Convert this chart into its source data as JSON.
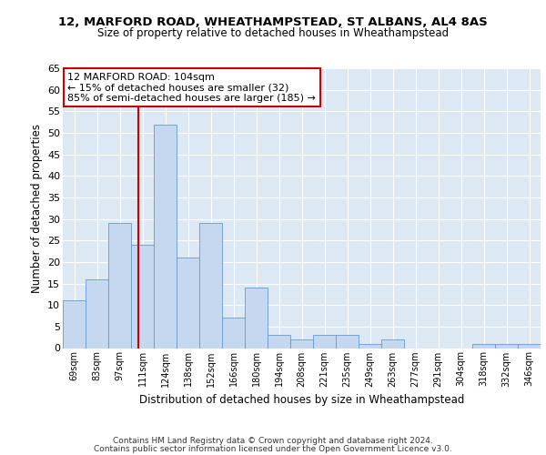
{
  "title1": "12, MARFORD ROAD, WHEATHAMPSTEAD, ST ALBANS, AL4 8AS",
  "title2": "Size of property relative to detached houses in Wheathampstead",
  "xlabel": "Distribution of detached houses by size in Wheathampstead",
  "ylabel": "Number of detached properties",
  "categories": [
    "69sqm",
    "83sqm",
    "97sqm",
    "111sqm",
    "124sqm",
    "138sqm",
    "152sqm",
    "166sqm",
    "180sqm",
    "194sqm",
    "208sqm",
    "221sqm",
    "235sqm",
    "249sqm",
    "263sqm",
    "277sqm",
    "291sqm",
    "304sqm",
    "318sqm",
    "332sqm",
    "346sqm"
  ],
  "values": [
    11,
    16,
    29,
    24,
    52,
    21,
    29,
    7,
    14,
    3,
    2,
    3,
    3,
    1,
    2,
    0,
    0,
    0,
    1,
    1,
    1
  ],
  "bar_color": "#c5d8f0",
  "bar_edge_color": "#6699cc",
  "background_color": "#dde8f5",
  "grid_color": "#ffffff",
  "annotation_text": "12 MARFORD ROAD: 104sqm\n← 15% of detached houses are smaller (32)\n85% of semi-detached houses are larger (185) →",
  "annotation_box_color": "#ffffff",
  "annotation_box_edge_color": "#cc0000",
  "footer1": "Contains HM Land Registry data © Crown copyright and database right 2024.",
  "footer2": "Contains public sector information licensed under the Open Government Licence v3.0.",
  "ylim": [
    0,
    65
  ],
  "yticks": [
    0,
    5,
    10,
    15,
    20,
    25,
    30,
    35,
    40,
    45,
    50,
    55,
    60,
    65
  ],
  "red_line_x": 2.83
}
